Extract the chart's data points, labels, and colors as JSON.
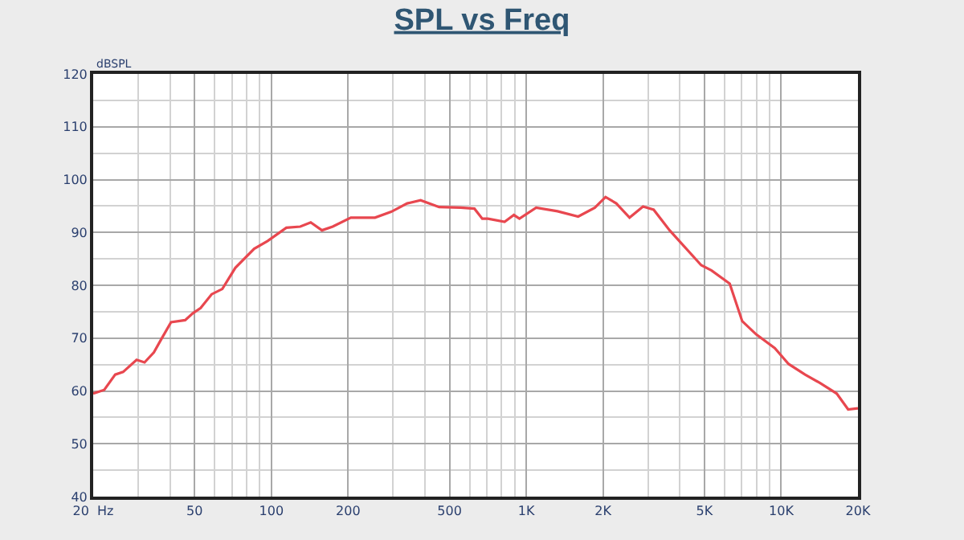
{
  "chart_data": {
    "type": "line",
    "title": "SPL vs Freq",
    "ylabel": "dBSPL",
    "x": [
      20,
      22.1,
      24.4,
      26.2,
      29.6,
      31.8,
      34.6,
      36.8,
      40.4,
      45.9,
      49.2,
      52.8,
      58.3,
      64.2,
      72.2,
      85.6,
      96.7,
      114.5,
      129.8,
      142.7,
      157.9,
      174,
      205,
      255,
      295,
      341,
      385,
      455,
      553,
      626,
      672,
      707,
      822,
      894,
      940,
      1093,
      1326,
      1598,
      1858,
      2046,
      2254,
      2542,
      2870,
      3160,
      3650,
      4854,
      5332,
      6279,
      7030,
      7975,
      9435,
      10690,
      12400,
      14200,
      16510,
      18300,
      20000
    ],
    "series": [
      {
        "color": "#e8474f",
        "values": [
          59.5,
          60.2,
          63.1,
          63.6,
          65.9,
          65.4,
          67.3,
          69.6,
          73.0,
          73.4,
          74.7,
          75.7,
          78.3,
          79.3,
          83.3,
          86.9,
          88.4,
          90.9,
          91.1,
          91.9,
          90.4,
          91.1,
          92.8,
          92.8,
          93.9,
          95.5,
          96.1,
          94.8,
          94.7,
          94.5,
          92.6,
          92.6,
          92.0,
          93.3,
          92.6,
          94.7,
          94.0,
          93.0,
          94.7,
          96.7,
          95.5,
          92.8,
          94.9,
          94.3,
          90.4,
          83.8,
          82.8,
          80.3,
          73.2,
          70.7,
          68.1,
          65.1,
          63.1,
          61.5,
          59.5,
          56.5,
          56.7
        ]
      }
    ],
    "log": "x",
    "xlim": [
      20,
      20000
    ],
    "xticks": [
      {
        "value": 20,
        "label": "20  Hz"
      },
      50,
      100,
      200,
      500,
      {
        "value": 1000,
        "label": "1K"
      },
      {
        "value": 2000,
        "label": "2K"
      },
      {
        "value": 5000,
        "label": "5K"
      },
      {
        "value": 10000,
        "label": "10K"
      },
      {
        "value": 20000,
        "label": "20K"
      }
    ],
    "ylim": [
      40,
      120
    ],
    "yticks": [
      40,
      50,
      60,
      70,
      80,
      90,
      100,
      110,
      120
    ],
    "grid": true,
    "marker": "none",
    "line_style": "solid"
  }
}
